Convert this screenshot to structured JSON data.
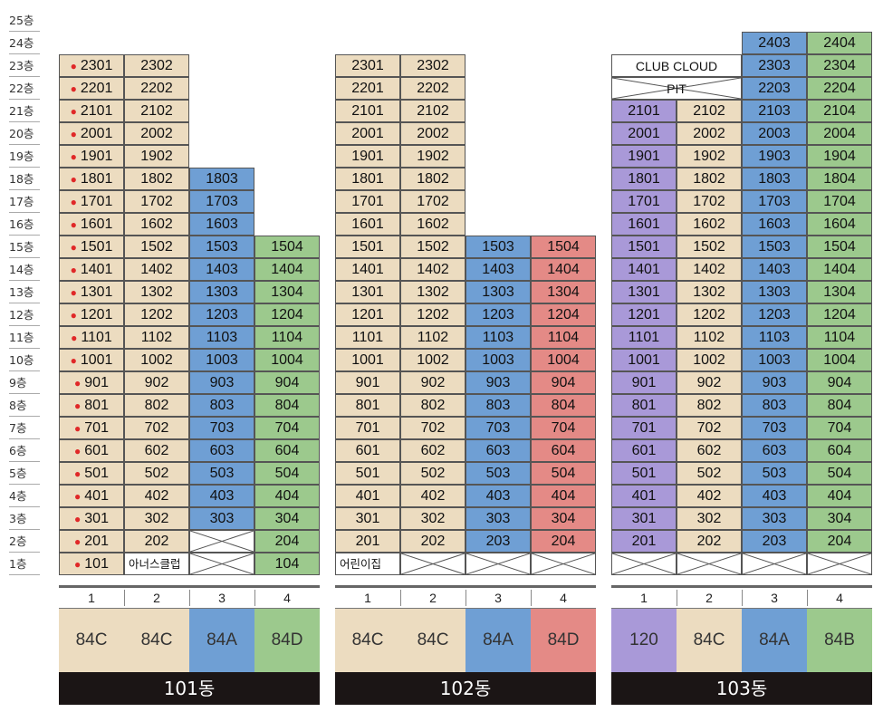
{
  "floors": [
    "25층",
    "24층",
    "23층",
    "22층",
    "21층",
    "20층",
    "19층",
    "18층",
    "17층",
    "16층",
    "15층",
    "14층",
    "13층",
    "12층",
    "11층",
    "10층",
    "9층",
    "8층",
    "7층",
    "6층",
    "5층",
    "4층",
    "3층",
    "2층",
    "1층"
  ],
  "colors": {
    "tan": "#ecdcc0",
    "blue": "#6f9fd4",
    "green": "#9cc98d",
    "red": "#e48a86",
    "purple": "#a999d8",
    "dot": "#e02828",
    "footer": "#1b1515"
  },
  "buildings": [
    {
      "name": "101동",
      "lines": [
        {
          "line": "1",
          "type": "84C",
          "color": "tan",
          "top_floor": 23,
          "dot": true,
          "first_floor_label": ""
        },
        {
          "line": "2",
          "type": "84C",
          "color": "tan",
          "top_floor": 23,
          "dot": false,
          "first_floor_label": "아너스클럽"
        },
        {
          "line": "3",
          "type": "84A",
          "color": "blue",
          "top_floor": 18,
          "dot": false,
          "crossed_floors": [
            1,
            2
          ]
        },
        {
          "line": "4",
          "type": "84D",
          "color": "green",
          "top_floor": 15,
          "dot": false
        }
      ]
    },
    {
      "name": "102동",
      "lines": [
        {
          "line": "1",
          "type": "84C",
          "color": "tan",
          "top_floor": 23,
          "dot": false,
          "first_floor_label": "어린이집"
        },
        {
          "line": "2",
          "type": "84C",
          "color": "tan",
          "top_floor": 23,
          "dot": false,
          "crossed_floors": [
            1
          ]
        },
        {
          "line": "3",
          "type": "84A",
          "color": "blue",
          "top_floor": 15,
          "dot": false,
          "crossed_floors": [
            1
          ]
        },
        {
          "line": "4",
          "type": "84D",
          "color": "red",
          "top_floor": 15,
          "dot": false,
          "crossed_floors": [
            1
          ]
        }
      ]
    },
    {
      "name": "103동",
      "lines": [
        {
          "line": "1",
          "type": "120",
          "color": "purple",
          "top_floor": 21,
          "dot": false,
          "crossed_floors": [
            1
          ]
        },
        {
          "line": "2",
          "type": "84C",
          "color": "tan",
          "top_floor": 21,
          "dot": false,
          "crossed_floors": [
            1
          ]
        },
        {
          "line": "3",
          "type": "84A",
          "color": "blue",
          "top_floor": 24,
          "dot": false,
          "crossed_floors": [
            1
          ]
        },
        {
          "line": "4",
          "type": "84B",
          "color": "green",
          "top_floor": 24,
          "dot": false,
          "crossed_floors": [
            1
          ]
        }
      ],
      "club_label": "CLUB CLOUD",
      "pit_label": "PIT"
    }
  ]
}
